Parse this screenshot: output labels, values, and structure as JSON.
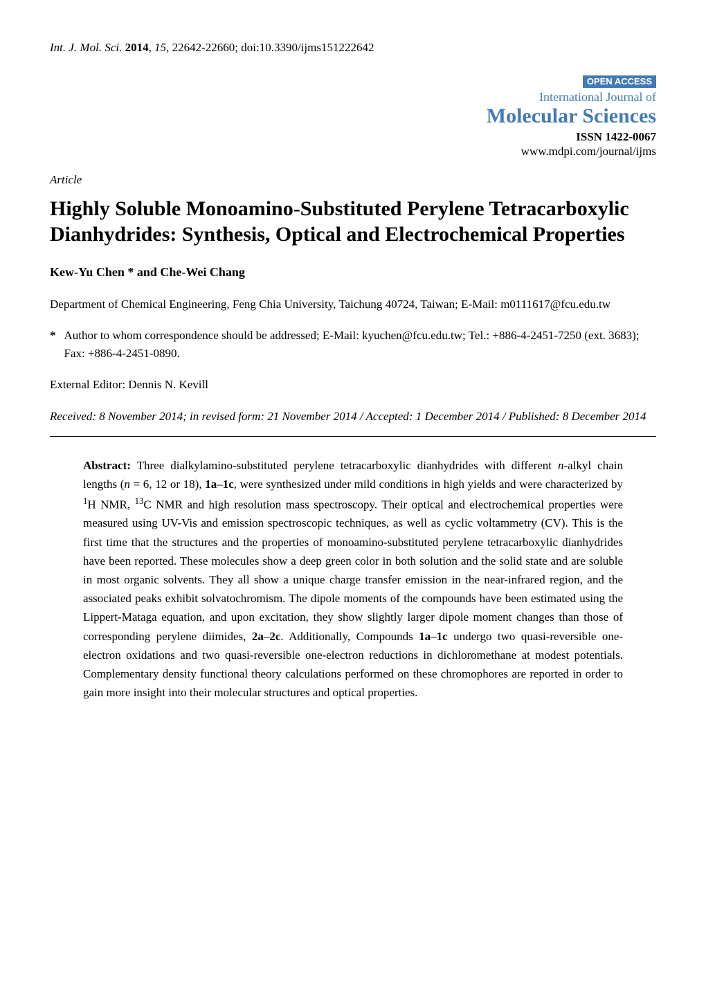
{
  "header": {
    "journal_abbrev": "Int. J. Mol. Sci.",
    "year": "2014",
    "volume": "15",
    "pages": "22642-22660",
    "doi": "doi:10.3390/ijms151222642"
  },
  "journal_block": {
    "open_access": "OPEN ACCESS",
    "international": "International Journal of",
    "name": "Molecular Sciences",
    "issn": "ISSN 1422-0067",
    "url": "www.mdpi.com/journal/ijms",
    "brand_color": "#427ab3"
  },
  "article_label": "Article",
  "title": "Highly Soluble Monoamino-Substituted Perylene Tetracarboxylic Dianhydrides: Synthesis, Optical and Electrochemical Properties",
  "authors": "Kew-Yu Chen * and Che-Wei Chang",
  "affiliation": "Department of Chemical Engineering, Feng Chia University, Taichung 40724, Taiwan; E-Mail: m0111617@fcu.edu.tw",
  "correspondence": {
    "marker": "*",
    "text": "Author to whom correspondence should be addressed; E-Mail: kyuchen@fcu.edu.tw; Tel.: +886-4-2451-7250 (ext. 3683); Fax: +886-4-2451-0890."
  },
  "editor": "External Editor: Dennis N. Kevill",
  "dates": "Received: 8 November 2014; in revised form: 21 November 2014 / Accepted: 1 December 2014 / Published: 8 December 2014",
  "abstract": {
    "label": "Abstract:",
    "text_1": " Three dialkylamino-substituted perylene tetracarboxylic dianhydrides with different ",
    "n_italic": "n",
    "text_2": "-alkyl chain lengths (",
    "n2_italic": "n",
    "text_3": " = 6, 12 or 18), ",
    "bold_1a1c": "1a",
    "dash1": "–",
    "bold_1c": "1c",
    "text_4": ", were synthesized under mild conditions in high yields and were characterized by ",
    "sup1": "1",
    "text_5": "H NMR, ",
    "sup13": "13",
    "text_6": "C NMR and high resolution mass spectroscopy. Their optical and electrochemical properties were measured using UV-Vis and emission spectroscopic techniques, as well as cyclic voltammetry (CV). This is the first time that the structures and the properties of monoamino-substituted perylene tetracarboxylic dianhydrides have been reported. These molecules show a deep green color in both solution and the solid state and are soluble in most organic solvents. They all show a unique charge transfer emission in the near-infrared region, and the associated peaks exhibit solvatochromism. The dipole moments of the compounds have been estimated using the Lippert-Mataga equation, and upon excitation, they show slightly larger dipole moment changes than those of corresponding perylene diimides, ",
    "bold_2a": "2a",
    "dash2": "–",
    "bold_2c": "2c",
    "text_7": ". Additionally, Compounds ",
    "bold_1a2": "1a",
    "dash3": "–",
    "bold_1c2": "1c",
    "text_8": " undergo two quasi-reversible one-electron oxidations and two quasi-reversible one-electron reductions in dichloromethane at modest potentials. Complementary density functional theory calculations performed on these chromophores are reported in order to gain more insight into their molecular structures and optical properties."
  }
}
